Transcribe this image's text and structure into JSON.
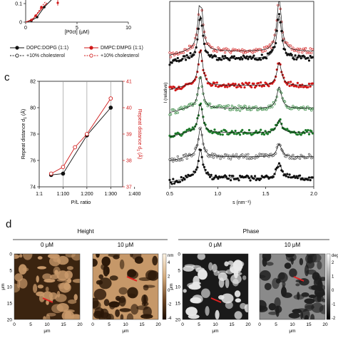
{
  "panel_a_top": {
    "x_axis_label": "[P0ct] (μM)",
    "x_ticks": [
      "0",
      "5",
      "10"
    ],
    "y_ticks": [
      "0",
      "0.1"
    ],
    "legend": [
      {
        "label": "DOPC:DOPG (1:1)",
        "color": "#111111",
        "marker": "filled"
      },
      {
        "label": "DMPC:DMPG (1:1)",
        "color": "#d01818",
        "marker": "filled"
      },
      {
        "label": "+10% cholesterol",
        "color": "#111111",
        "marker": "open"
      },
      {
        "label": "+10% cholesterol",
        "color": "#d01818",
        "marker": "open"
      }
    ]
  },
  "panel_c": {
    "letter": "c",
    "x_axis_label": "P/L ratio",
    "y_left_label": "Repeat distance d",
    "y_left_sub": "1",
    "y_left_unit": " (Å)",
    "y_right_label": "Repeat distance d",
    "y_right_sub": "1",
    "y_right_unit": " (Å)",
    "chart_data": {
      "type": "line",
      "x_ticks": [
        "1:1",
        "1:100",
        "1:200",
        "1:300",
        "1:400"
      ],
      "y_left_ticks": [
        "74",
        "76",
        "78",
        "80",
        "82"
      ],
      "y_right_ticks": [
        "37",
        "38",
        "39",
        "40",
        "41"
      ],
      "series": [
        {
          "color": "#111111",
          "axis": "left",
          "points": [
            {
              "x": 1,
              "y": 74.9
            },
            {
              "x": 2,
              "y": 75.0
            },
            {
              "x": 4,
              "y": 77.9
            },
            {
              "x": 6,
              "y": 80.0
            }
          ]
        },
        {
          "color": "#d01818",
          "axis": "right",
          "points": [
            {
              "x": 1,
              "y": 37.5
            },
            {
              "x": 2,
              "y": 37.75
            },
            {
              "x": 3,
              "y": 38.5
            },
            {
              "x": 4,
              "y": 39.0
            },
            {
              "x": 6,
              "y": 40.35
            }
          ]
        }
      ]
    }
  },
  "panel_b": {
    "x_axis_label": "s (nm⁻¹)",
    "y_axis_label": "I (relative)",
    "x_ticks": [
      "0.5",
      "1.0",
      "1.5",
      "2.0"
    ],
    "chart_data": {
      "type": "scatter",
      "xlim": [
        0.5,
        2.0
      ],
      "peaks": [
        0.82,
        1.64
      ],
      "traces": [
        {
          "color": "#d01818",
          "open": true
        },
        {
          "color": "#111111",
          "open": false
        },
        {
          "color": "#d01818",
          "open": false
        },
        {
          "color": "#1d7a2a",
          "open": true
        },
        {
          "color": "#1d7a2a",
          "open": false
        },
        {
          "color": "#444444",
          "open": true
        },
        {
          "color": "#111111",
          "open": false
        }
      ]
    }
  },
  "panel_d": {
    "letter": "d",
    "height_title": "Height",
    "phase_title": "Phase",
    "labels": [
      "0 μM",
      "10 μM",
      "0 μM",
      "10 μM"
    ],
    "axis_unit": "μm",
    "x_ticks": [
      "0",
      "5",
      "10",
      "15",
      "20"
    ],
    "y_ticks": [
      "0",
      "5",
      "10",
      "15",
      "20"
    ],
    "height_scale": {
      "unit": "nm",
      "ticks": [
        "4",
        "2",
        "0",
        "-2",
        "-4"
      ]
    },
    "phase_scale": {
      "unit": "deg",
      "ticks": [
        "2",
        "1",
        "0",
        "-1",
        "-2"
      ]
    }
  }
}
